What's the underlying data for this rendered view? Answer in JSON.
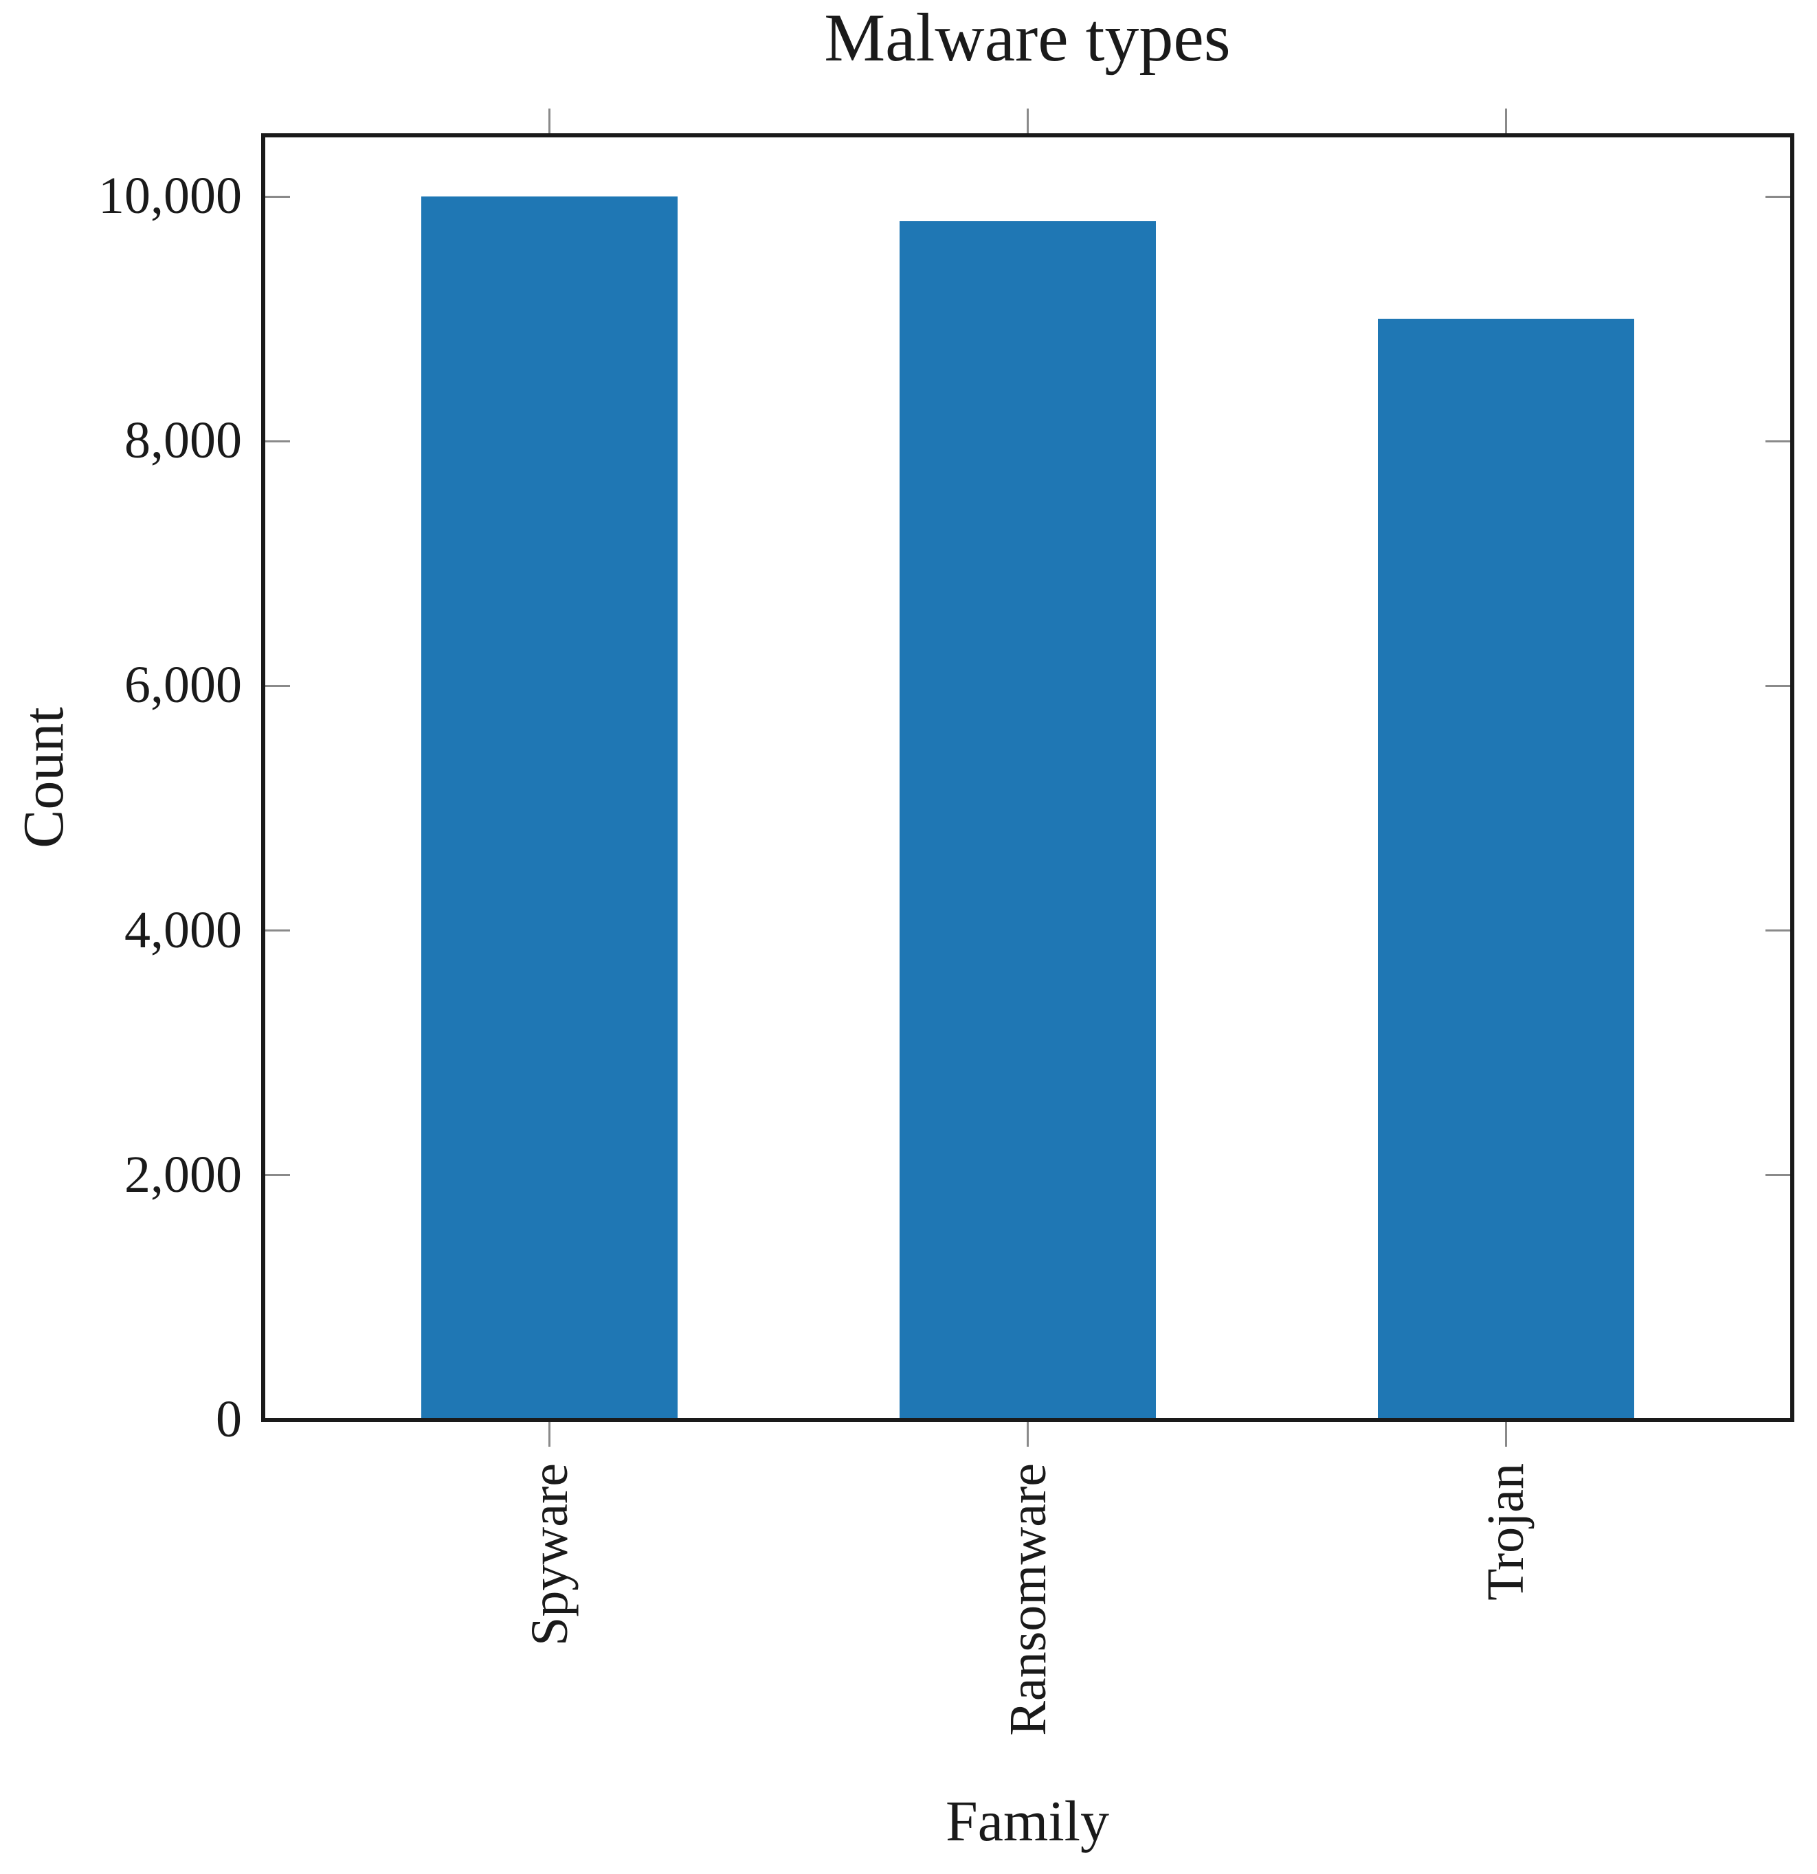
{
  "page": {
    "background": "#ffffff"
  },
  "chart_data": {
    "type": "bar",
    "title": "Malware types",
    "xlabel": "Family",
    "ylabel": "Count",
    "categories": [
      "Spyware",
      "Ransomware",
      "Trojan"
    ],
    "values": [
      10000,
      9800,
      9000
    ],
    "ylim": [
      0,
      10500
    ],
    "yticks": [
      {
        "value": 0,
        "label": "0"
      },
      {
        "value": 2000,
        "label": "2,000"
      },
      {
        "value": 4000,
        "label": "4,000"
      },
      {
        "value": 6000,
        "label": "6,000"
      },
      {
        "value": 8000,
        "label": "8,000"
      },
      {
        "value": 10000,
        "label": "10,000"
      }
    ],
    "grid": "off",
    "legend": "none",
    "bar_orientation": "vertical",
    "colors": {
      "bar": "#1f77b4",
      "axis": "#1a1a1a",
      "tick_mark": "#8a8a8a",
      "text": "#1a1a1a",
      "background": "#ffffff"
    }
  }
}
